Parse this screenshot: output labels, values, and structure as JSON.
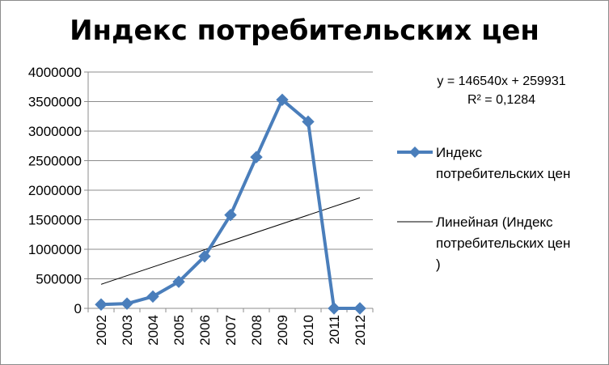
{
  "chart_data": {
    "type": "line",
    "title": "Индекс потребительских цен",
    "categories": [
      "2002",
      "2003",
      "2004",
      "2005",
      "2006",
      "2007",
      "2008",
      "2009",
      "2010",
      "2011",
      "2012"
    ],
    "series": [
      {
        "name": "Индекс потребительских цен",
        "values": [
          65000,
          80000,
          200000,
          450000,
          880000,
          1580000,
          2560000,
          3530000,
          3160000,
          0,
          0
        ],
        "color": "#4a7ebb",
        "marker": "diamond"
      }
    ],
    "trendline": {
      "name": "Линейная (Индекс потребительских цен )",
      "type": "linear",
      "slope": 146540,
      "intercept": 259931,
      "equation": "y = 146540x + 259931",
      "r2": "R² = 0,1284",
      "color": "#000000"
    },
    "ylim": [
      0,
      4000000
    ],
    "yticks": [
      "0",
      "500000",
      "1000000",
      "1500000",
      "2000000",
      "2500000",
      "3000000",
      "3500000",
      "4000000"
    ],
    "grid": true,
    "legend_position": "right",
    "legend": {
      "series_label_lines": [
        "Индекс",
        "потребительских цен"
      ],
      "trend_label_lines": [
        "Линейная (Индекс",
        "потребительских цен",
        ")"
      ]
    }
  }
}
